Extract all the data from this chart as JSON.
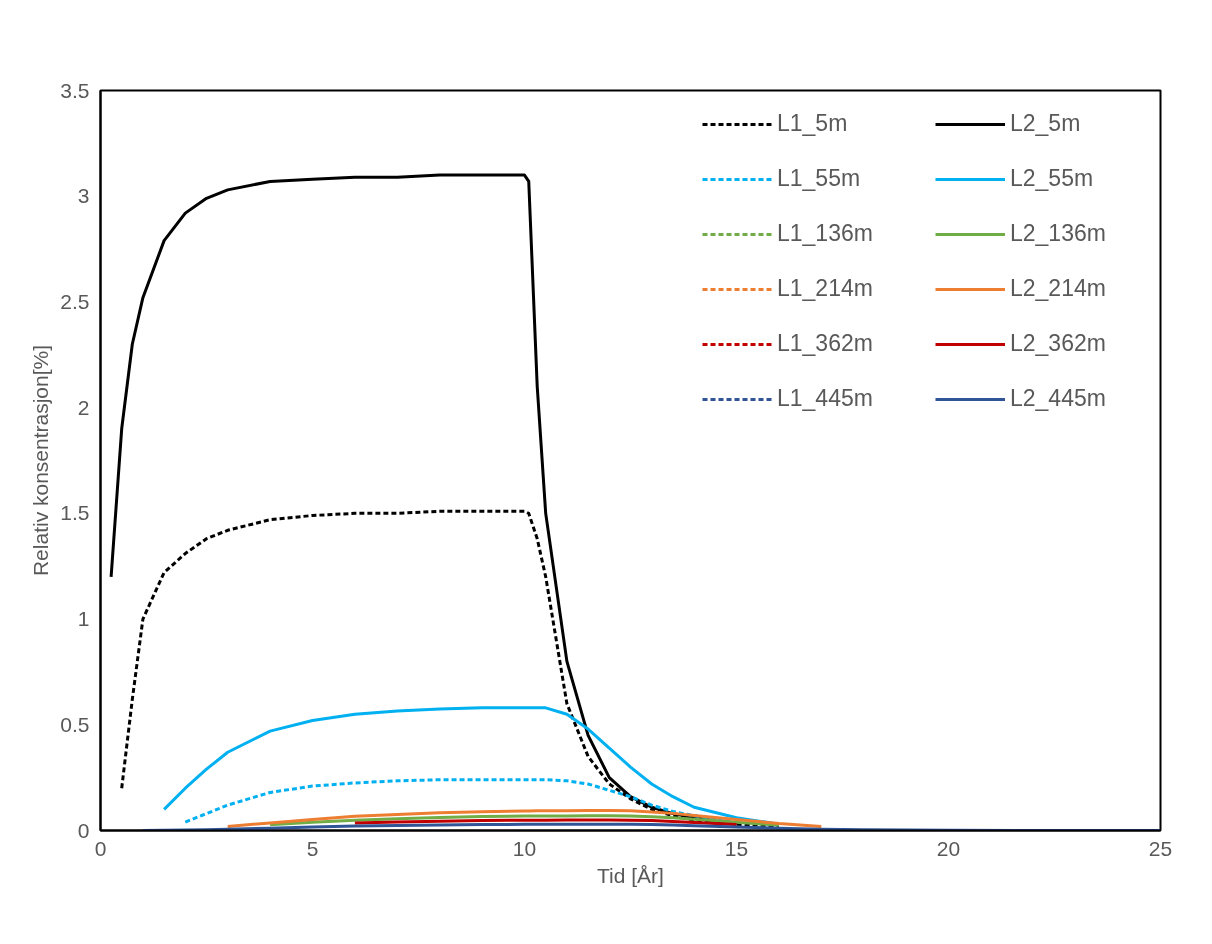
{
  "chart_data": {
    "type": "line",
    "xlabel": "Tid [År]",
    "ylabel": "Relativ konsentrasjon[%]",
    "x": [
      0.25,
      0.5,
      0.75,
      1,
      1.5,
      2,
      2.5,
      3,
      4,
      5,
      6,
      7,
      8,
      9,
      10,
      10.1,
      10.3,
      10.5,
      11,
      11.5,
      12,
      12.5,
      13,
      13.5,
      14,
      15,
      16,
      17,
      18,
      20,
      22,
      25
    ],
    "xlim": [
      0,
      25
    ],
    "xticks": [
      0,
      5,
      10,
      15,
      20,
      25
    ],
    "ylim": [
      0,
      3.5
    ],
    "yticks": [
      0,
      0.5,
      1,
      1.5,
      2,
      2.5,
      3,
      3.5
    ],
    "grid": false,
    "legend": "top right",
    "series": [
      {
        "name": "L1_5m",
        "color": "#000000",
        "line_style": "dashed",
        "values": [
          null,
          0.2,
          0.62,
          1.0,
          1.22,
          1.31,
          1.38,
          1.42,
          1.47,
          1.49,
          1.5,
          1.5,
          1.51,
          1.51,
          1.51,
          1.5,
          1.38,
          1.2,
          0.6,
          0.35,
          0.22,
          0.15,
          0.1,
          0.07,
          0.05,
          0.03,
          0.015,
          null,
          null,
          null,
          null,
          null
        ]
      },
      {
        "name": "L2_5m",
        "color": "#000000",
        "line_style": "solid",
        "values": [
          1.2,
          1.9,
          2.3,
          2.52,
          2.79,
          2.92,
          2.99,
          3.03,
          3.07,
          3.08,
          3.09,
          3.09,
          3.1,
          3.1,
          3.1,
          3.07,
          2.1,
          1.5,
          0.8,
          0.45,
          0.25,
          0.16,
          0.11,
          0.08,
          0.06,
          0.03,
          null,
          null,
          null,
          null,
          null,
          null
        ]
      },
      {
        "name": "L1_55m",
        "color": "#00b0f0",
        "line_style": "dashed",
        "values": [
          null,
          null,
          null,
          null,
          null,
          0.04,
          0.08,
          0.12,
          0.18,
          0.21,
          0.225,
          0.235,
          0.24,
          0.24,
          0.24,
          0.24,
          0.24,
          0.24,
          0.235,
          0.22,
          0.19,
          0.16,
          0.12,
          0.09,
          0.07,
          0.04,
          null,
          null,
          null,
          null,
          null,
          null
        ]
      },
      {
        "name": "L2_55m",
        "color": "#00b0f0",
        "line_style": "solid",
        "values": [
          null,
          null,
          null,
          null,
          0.1,
          0.2,
          0.29,
          0.37,
          0.47,
          0.52,
          0.55,
          0.565,
          0.575,
          0.58,
          0.58,
          0.58,
          0.58,
          0.58,
          0.55,
          0.48,
          0.39,
          0.3,
          0.22,
          0.16,
          0.11,
          0.06,
          0.03,
          null,
          null,
          null,
          null,
          null
        ]
      },
      {
        "name": "L1_136m",
        "color": "#70ad47",
        "line_style": "dashed",
        "values": [
          null,
          null,
          null,
          null,
          null,
          null,
          null,
          null,
          null,
          null,
          null,
          null,
          null,
          null,
          null,
          null,
          null,
          null,
          null,
          null,
          null,
          null,
          null,
          null,
          null,
          null,
          null,
          null,
          null,
          null,
          null,
          null
        ]
      },
      {
        "name": "L2_136m",
        "color": "#70ad47",
        "line_style": "solid",
        "values": [
          null,
          null,
          null,
          null,
          null,
          null,
          null,
          null,
          0.027,
          0.039,
          0.049,
          0.056,
          0.062,
          0.066,
          0.068,
          0.068,
          0.069,
          0.069,
          0.069,
          0.07,
          0.07,
          0.069,
          0.065,
          0.06,
          0.053,
          0.039,
          0.025,
          null,
          null,
          null,
          null,
          null
        ]
      },
      {
        "name": "L1_214m",
        "color": "#ed7d31",
        "line_style": "dashed",
        "values": [
          null,
          null,
          null,
          null,
          null,
          null,
          null,
          null,
          null,
          null,
          null,
          null,
          null,
          null,
          null,
          null,
          null,
          null,
          null,
          null,
          null,
          null,
          null,
          null,
          null,
          null,
          null,
          null,
          null,
          null,
          null,
          null
        ]
      },
      {
        "name": "L2_214m",
        "color": "#ed7d31",
        "line_style": "solid",
        "values": [
          null,
          null,
          null,
          null,
          null,
          null,
          null,
          0.019,
          0.036,
          0.052,
          0.067,
          0.076,
          0.084,
          0.089,
          0.092,
          0.092,
          0.093,
          0.093,
          0.094,
          0.095,
          0.095,
          0.093,
          0.088,
          0.081,
          0.071,
          0.052,
          0.033,
          0.019,
          null,
          null,
          null,
          null
        ]
      },
      {
        "name": "L1_362m",
        "color": "#c00000",
        "line_style": "dashed",
        "values": [
          null,
          null,
          null,
          null,
          null,
          null,
          null,
          null,
          null,
          null,
          null,
          null,
          null,
          null,
          null,
          null,
          null,
          null,
          null,
          null,
          null,
          null,
          null,
          null,
          null,
          null,
          null,
          null,
          null,
          null,
          null,
          null
        ]
      },
      {
        "name": "L2_362m",
        "color": "#c00000",
        "line_style": "solid",
        "values": [
          null,
          null,
          null,
          null,
          null,
          null,
          null,
          null,
          null,
          null,
          0.035,
          0.04,
          0.044,
          0.047,
          0.049,
          0.049,
          0.049,
          0.049,
          0.05,
          0.05,
          0.05,
          0.049,
          0.047,
          0.043,
          0.038,
          0.028,
          null,
          null,
          null,
          null,
          null,
          null
        ]
      },
      {
        "name": "L1_445m",
        "color": "#2f5597",
        "line_style": "dashed",
        "values": [
          null,
          null,
          null,
          null,
          null,
          null,
          null,
          null,
          null,
          null,
          null,
          null,
          null,
          null,
          null,
          null,
          null,
          null,
          null,
          null,
          null,
          null,
          null,
          null,
          null,
          null,
          null,
          null,
          null,
          null,
          null,
          null
        ]
      },
      {
        "name": "L2_445m",
        "color": "#2f5597",
        "line_style": "solid",
        "values": [
          null,
          null,
          null,
          0,
          0.001,
          0.002,
          0.004,
          0.006,
          0.011,
          0.017,
          0.021,
          0.024,
          0.026,
          0.028,
          0.029,
          0.029,
          0.029,
          0.029,
          0.03,
          0.03,
          0.03,
          0.029,
          0.028,
          0.026,
          0.023,
          0.017,
          0.011,
          0.006,
          0.003,
          0.001,
          0,
          0
        ]
      }
    ]
  }
}
